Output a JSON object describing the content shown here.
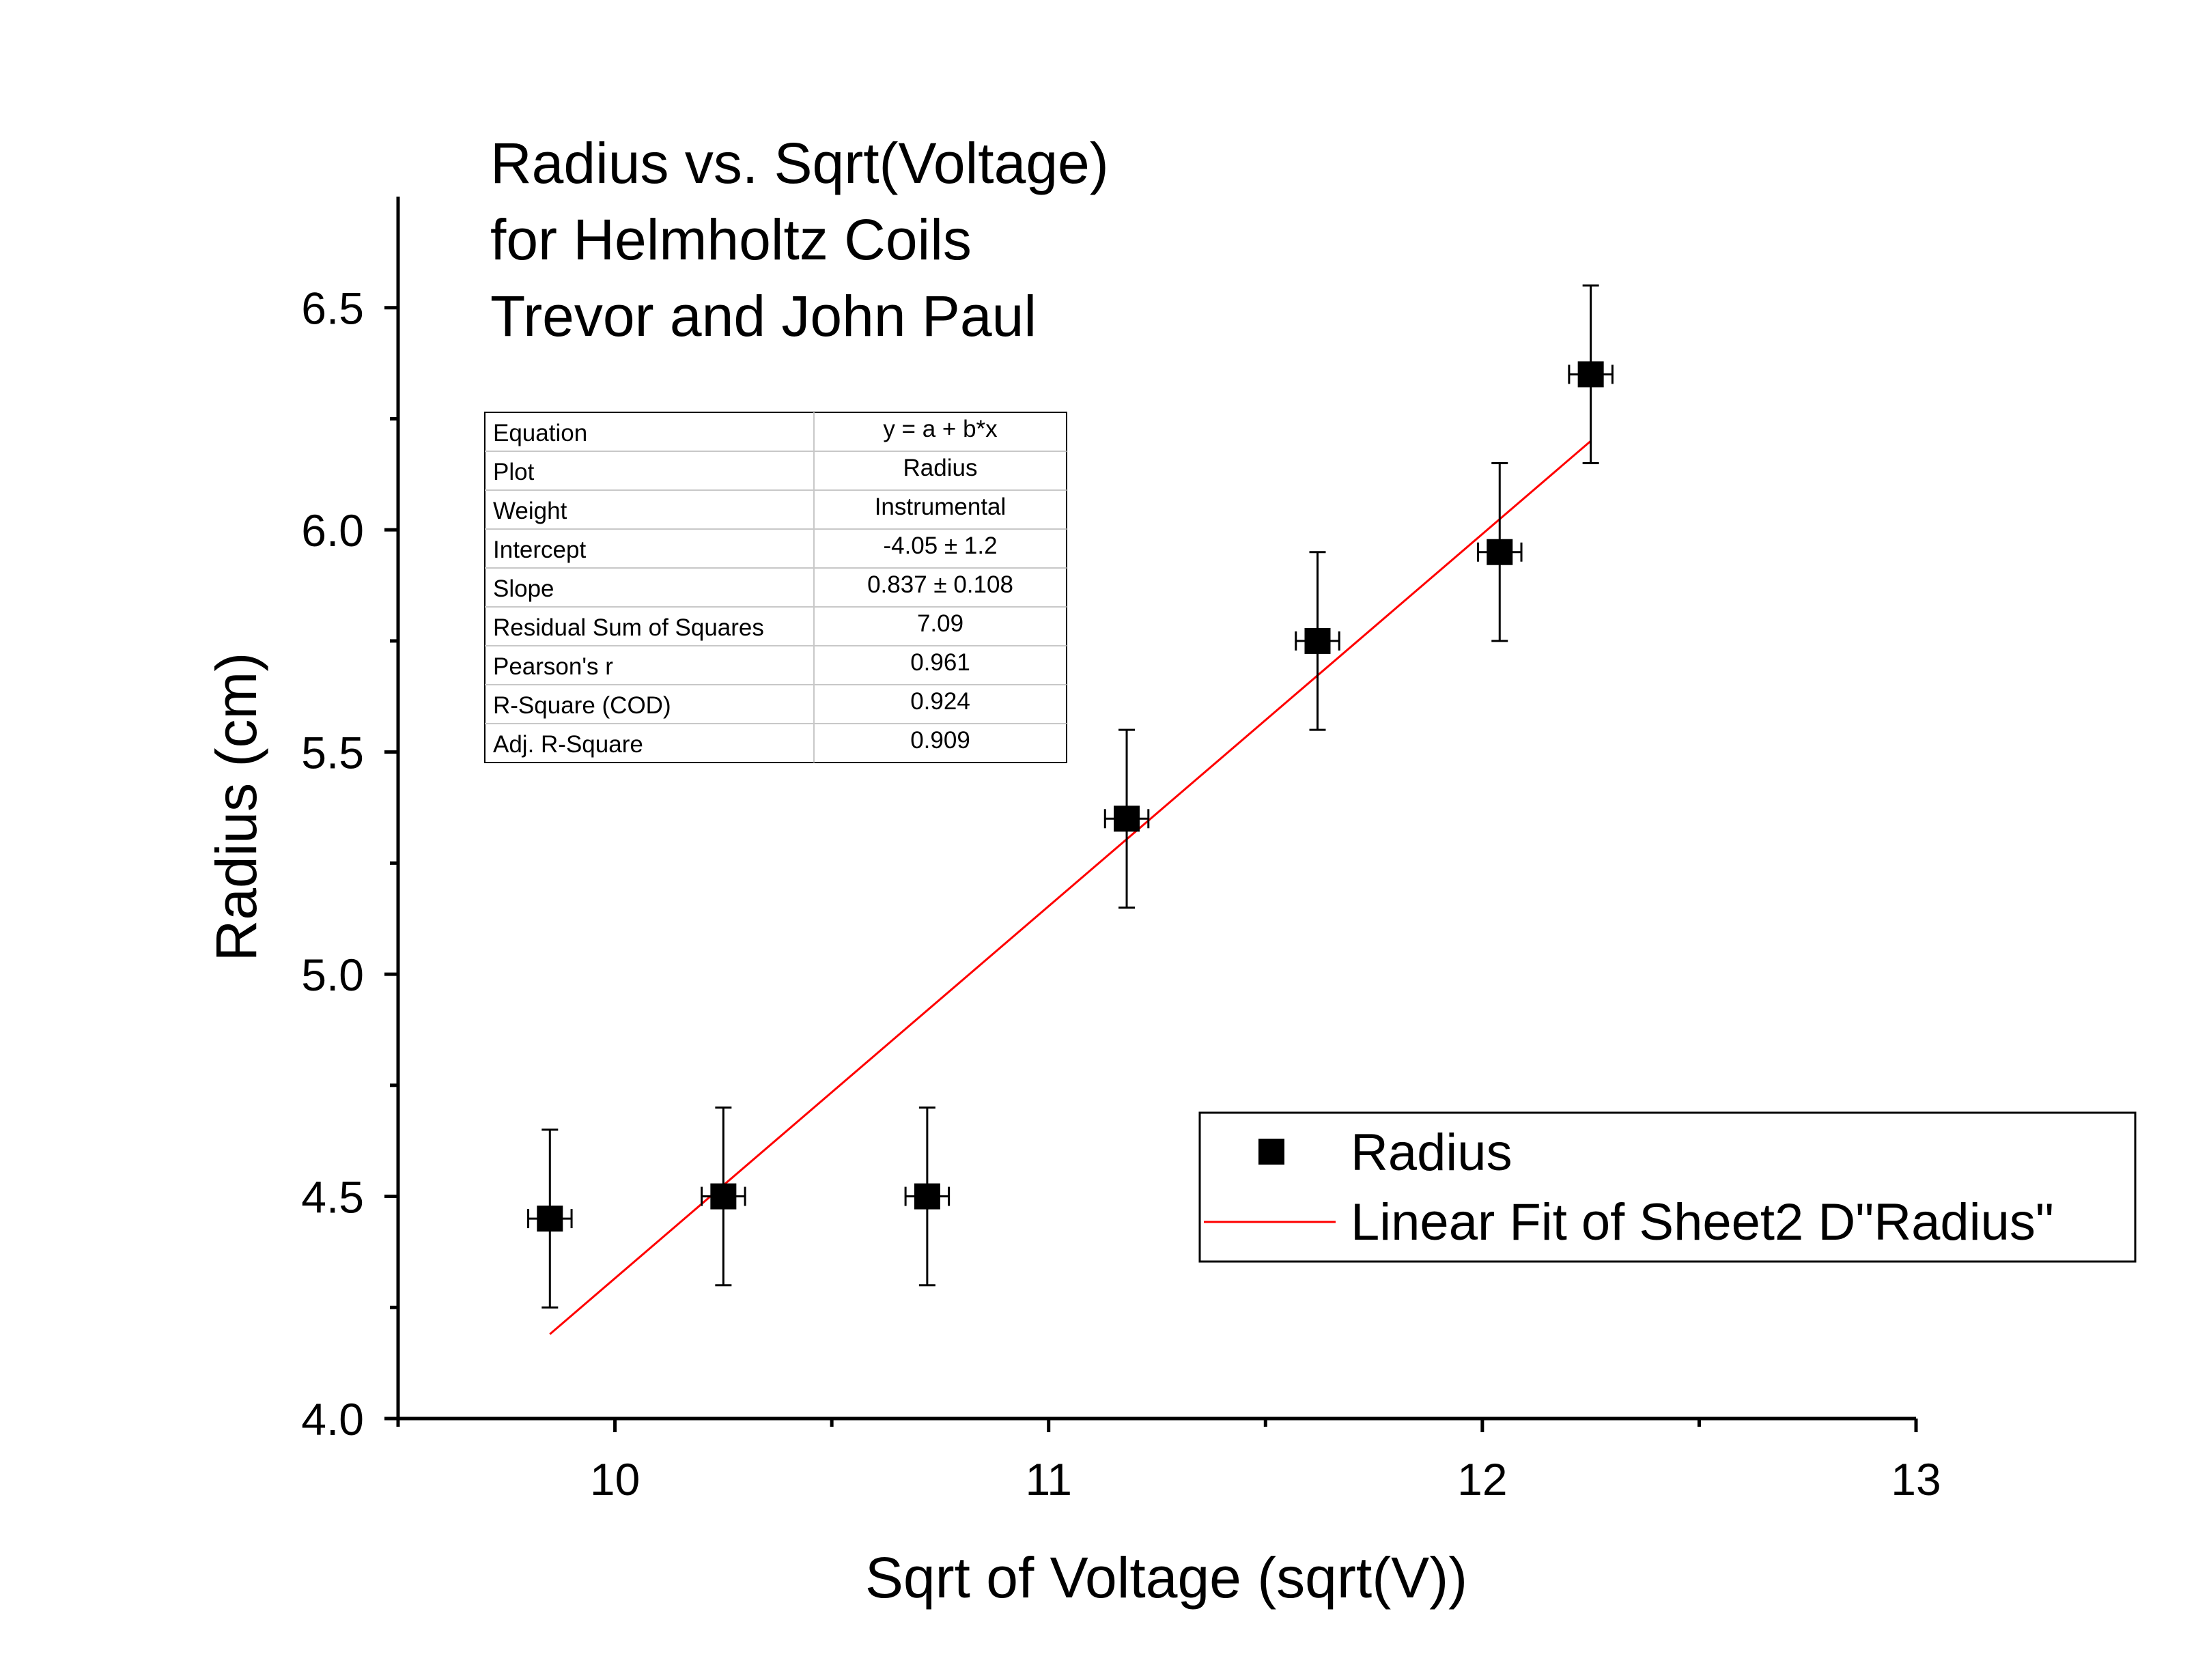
{
  "chart_data": {
    "type": "scatter",
    "title_lines": [
      "Radius vs. Sqrt(Voltage)",
      "for Helmholtz Coils",
      "Trevor and John Paul"
    ],
    "xlabel": "Sqrt of Voltage (sqrt(V))",
    "ylabel": "Radius (cm)",
    "xlim": [
      9.5,
      13
    ],
    "ylim": [
      4.0,
      6.75
    ],
    "x_ticks": [
      10,
      11,
      12,
      13
    ],
    "x_tick_labels": [
      "10",
      "11",
      "12",
      "13"
    ],
    "y_ticks": [
      4.0,
      4.5,
      5.0,
      5.5,
      6.0,
      6.5
    ],
    "y_tick_labels": [
      "4.0",
      "4.5",
      "5.0",
      "5.5",
      "6.0",
      "6.5"
    ],
    "x_minor_ticks": [
      9.5,
      10.5,
      11.5,
      12.5
    ],
    "y_minor_ticks": [
      4.25,
      4.75,
      5.25,
      5.75,
      6.25
    ],
    "grid": false,
    "legend_position": "bottom-right",
    "series": [
      {
        "name": "Radius",
        "kind": "scatter",
        "marker": "square",
        "color": "#000000",
        "points": [
          {
            "x": 9.85,
            "y": 4.45,
            "xerr": 0.05,
            "yerr": 0.2
          },
          {
            "x": 10.25,
            "y": 4.5,
            "xerr": 0.05,
            "yerr": 0.2
          },
          {
            "x": 10.72,
            "y": 4.5,
            "xerr": 0.05,
            "yerr": 0.2
          },
          {
            "x": 11.18,
            "y": 5.35,
            "xerr": 0.05,
            "yerr": 0.2
          },
          {
            "x": 11.62,
            "y": 5.75,
            "xerr": 0.05,
            "yerr": 0.2
          },
          {
            "x": 12.04,
            "y": 5.95,
            "xerr": 0.05,
            "yerr": 0.2
          },
          {
            "x": 12.25,
            "y": 6.35,
            "xerr": 0.05,
            "yerr": 0.2
          }
        ]
      },
      {
        "name": "Linear Fit of Sheet2 D\"Radius\"",
        "kind": "line",
        "color": "#ff0000",
        "x": [
          9.85,
          12.25
        ],
        "y": [
          4.19,
          6.2
        ]
      }
    ],
    "stats_table": [
      {
        "label": "Equation",
        "value": "y = a + b*x"
      },
      {
        "label": "Plot",
        "value": "Radius"
      },
      {
        "label": "Weight",
        "value": "Instrumental"
      },
      {
        "label": "Intercept",
        "value": "-4.05 ± 1.2"
      },
      {
        "label": "Slope",
        "value": "0.837 ± 0.108"
      },
      {
        "label": "Residual Sum of Squares",
        "value": "7.09"
      },
      {
        "label": "Pearson's r",
        "value": "0.961"
      },
      {
        "label": "R-Square (COD)",
        "value": "0.924"
      },
      {
        "label": "Adj. R-Square",
        "value": "0.909"
      }
    ]
  }
}
